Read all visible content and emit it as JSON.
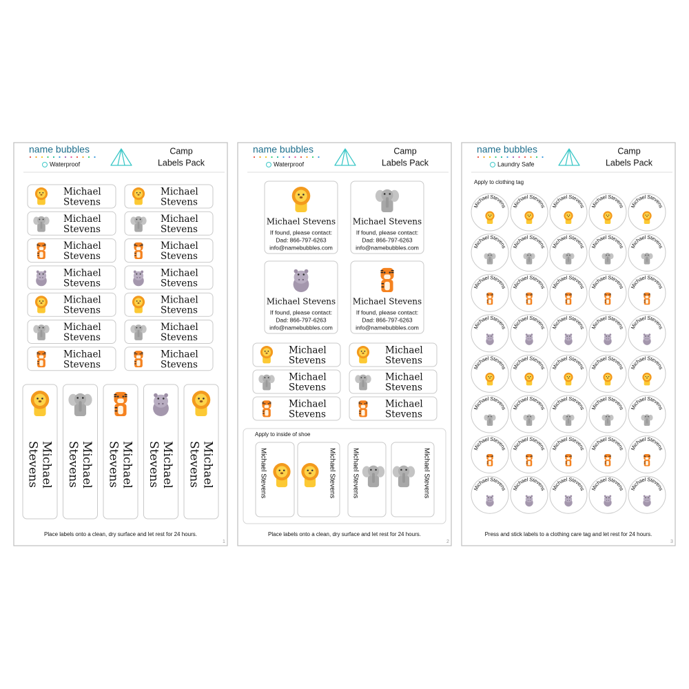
{
  "sheets": [
    {
      "brand": "name bubbles",
      "badge": "Waterproof",
      "title": [
        "Camp",
        "Labels Pack"
      ],
      "name": [
        "Michael",
        "Stevens"
      ],
      "footer": "Place labels onto a clean, dry surface and let rest for 24 hours.",
      "page": 1
    },
    {
      "brand": "name bubbles",
      "badge": "Waterproof",
      "title": [
        "Camp",
        "Labels Pack"
      ],
      "card_name": "Michael Stevens",
      "card_contact": [
        "If found, please contact:",
        "Dad: 866-797-6263",
        "info@namebubbles.com"
      ],
      "name": [
        "Michael",
        "Stevens"
      ],
      "shoe_heading": "Apply to inside of shoe",
      "shoe_name": "Michael Stevens",
      "footer": "Place labels onto a clean, dry surface and let rest for 24 hours.",
      "page": 2
    },
    {
      "brand": "name bubbles",
      "badge": "Laundry Safe",
      "title": [
        "Camp",
        "Labels Pack"
      ],
      "heading": "Apply to clothing tag",
      "round_name": "Michael Stevens",
      "footer": "Press and stick labels to a clothing care tag and let rest for 24 hours.",
      "page": 3
    }
  ]
}
